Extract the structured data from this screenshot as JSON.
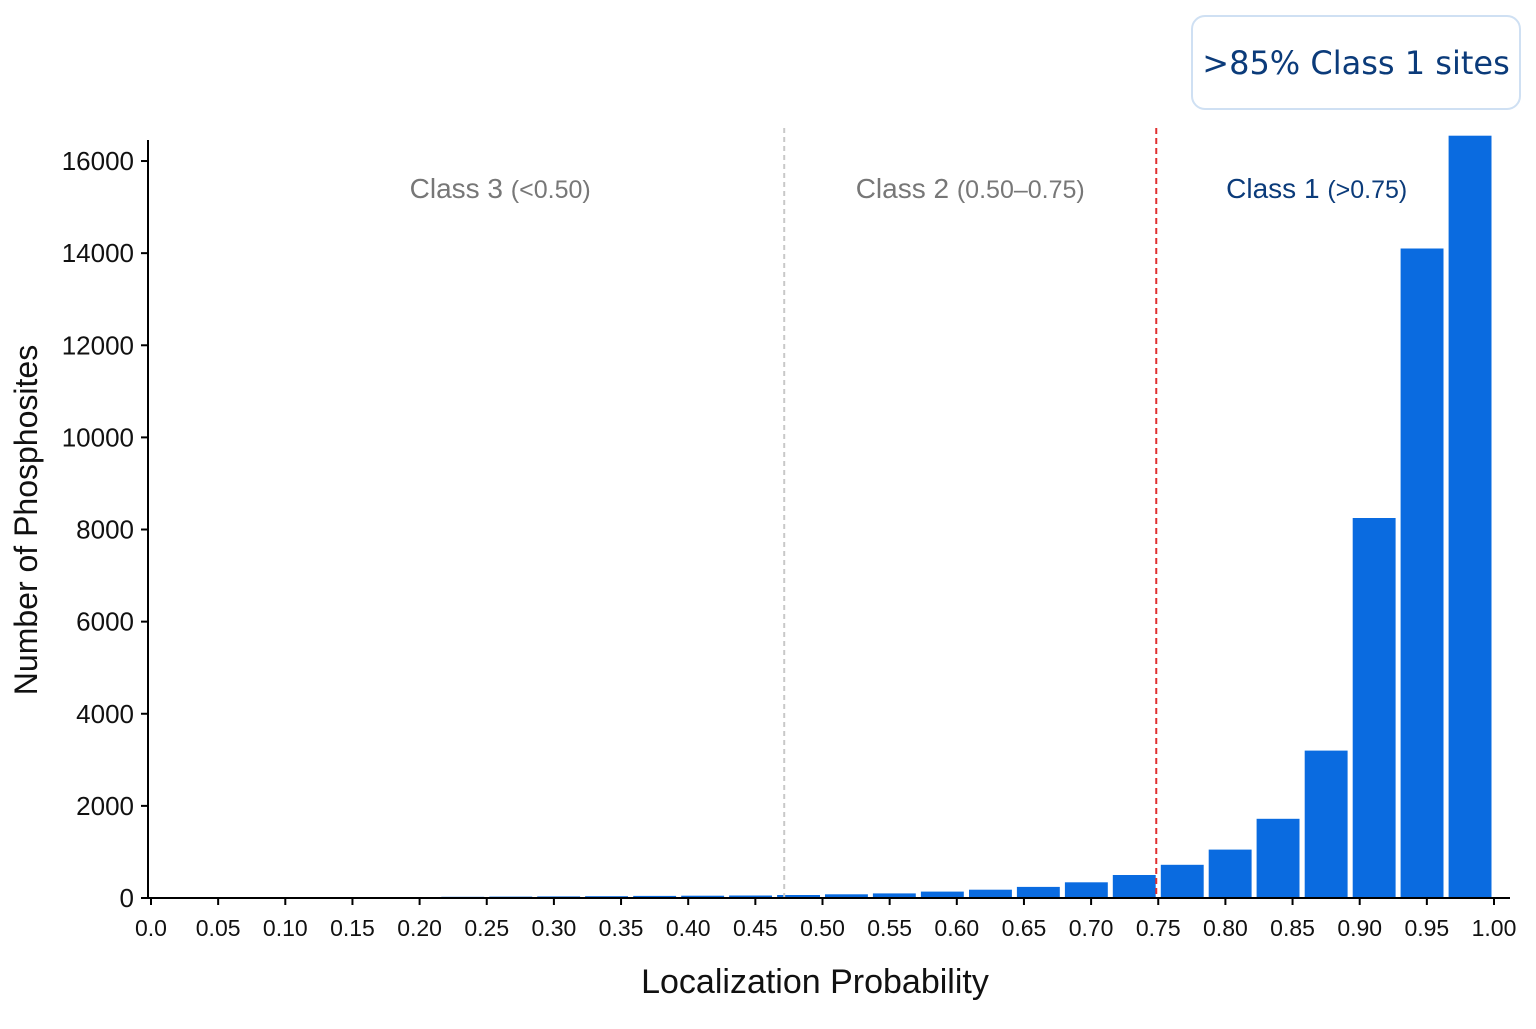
{
  "callout": {
    "text": ">85% Class 1 sites"
  },
  "colors": {
    "bar": "#0a6be0",
    "class1_text": "#0b3b7a",
    "class_other_text": "#777777",
    "threshold_line": "#e03030",
    "class_boundary_line": "#c8c8c8",
    "axis": "#000000"
  },
  "chart_data": {
    "type": "bar",
    "title": "",
    "xlabel": "Localization Probability",
    "ylabel": "Number of Phosphosites",
    "ylim": [
      0,
      16500
    ],
    "xlim": [
      0.0,
      1.0
    ],
    "y_ticks": [
      0,
      2000,
      4000,
      6000,
      8000,
      10000,
      12000,
      14000,
      16000
    ],
    "y_tick_labels": [
      "0",
      "2000",
      "4000",
      "6000",
      "8000",
      "10000",
      "12000",
      "14000",
      "16000"
    ],
    "x_tick_labels": [
      "0.0",
      "0.05",
      "0.10",
      "0.15",
      "0.20",
      "0.25",
      "0.30",
      "0.35",
      "0.40",
      "0.45",
      "0.50",
      "0.55",
      "0.60",
      "0.65",
      "0.70",
      "0.75",
      "0.80",
      "0.85",
      "0.90",
      "0.95",
      "1.00"
    ],
    "x_ticks": [
      0.0,
      0.05,
      0.1,
      0.15,
      0.2,
      0.25,
      0.3,
      0.35,
      0.4,
      0.45,
      0.5,
      0.55,
      0.6,
      0.65,
      0.7,
      0.75,
      0.8,
      0.85,
      0.9,
      0.95,
      1.0
    ],
    "bin_width": 0.0357,
    "bars": [
      {
        "x": 0.0357,
        "value": 10
      },
      {
        "x": 0.0714,
        "value": 12
      },
      {
        "x": 0.1071,
        "value": 15
      },
      {
        "x": 0.1429,
        "value": 18
      },
      {
        "x": 0.1786,
        "value": 20
      },
      {
        "x": 0.2143,
        "value": 22
      },
      {
        "x": 0.25,
        "value": 25
      },
      {
        "x": 0.2857,
        "value": 30
      },
      {
        "x": 0.3214,
        "value": 35
      },
      {
        "x": 0.3571,
        "value": 40
      },
      {
        "x": 0.3929,
        "value": 45
      },
      {
        "x": 0.4286,
        "value": 50
      },
      {
        "x": 0.4643,
        "value": 55
      },
      {
        "x": 0.5,
        "value": 65
      },
      {
        "x": 0.5357,
        "value": 80
      },
      {
        "x": 0.5714,
        "value": 100
      },
      {
        "x": 0.6071,
        "value": 140
      },
      {
        "x": 0.6429,
        "value": 180
      },
      {
        "x": 0.6786,
        "value": 240
      },
      {
        "x": 0.7143,
        "value": 340
      },
      {
        "x": 0.75,
        "value": 500
      },
      {
        "x": 0.7857,
        "value": 720
      },
      {
        "x": 0.8214,
        "value": 1050
      },
      {
        "x": 0.8571,
        "value": 1720
      },
      {
        "x": 0.8929,
        "value": 3200
      },
      {
        "x": 0.9286,
        "value": 8250
      },
      {
        "x": 0.9643,
        "value": 14100
      },
      {
        "x": 1.0,
        "value": 16550
      }
    ],
    "class_boundaries": [
      {
        "x": 0.47,
        "style": "boundary"
      },
      {
        "x": 0.75,
        "style": "threshold"
      }
    ],
    "regions": [
      {
        "name": "Class 3",
        "range": "(<0.50)",
        "x_center": 0.26,
        "emphasis": false
      },
      {
        "name": "Class 2",
        "range": "(0.50–0.75)",
        "x_center": 0.61,
        "emphasis": false
      },
      {
        "name": "Class 1",
        "range": "(>0.75)",
        "x_center": 0.868,
        "emphasis": true
      }
    ],
    "grid": false,
    "legend": "none"
  }
}
